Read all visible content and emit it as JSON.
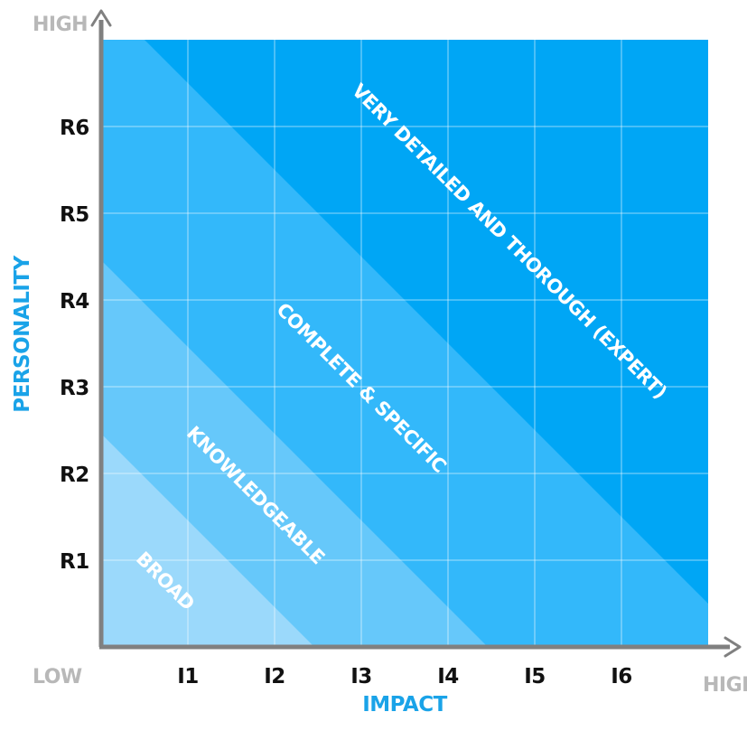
{
  "corner_labels": {
    "y_high": "HIGH",
    "x_high": "HIGH",
    "low": "LOW"
  },
  "axis_titles": {
    "y": "PERSONALITY",
    "x": "IMPACT"
  },
  "y_ticks": [
    "R1",
    "R2",
    "R3",
    "R4",
    "R5",
    "R6"
  ],
  "x_ticks": [
    "I1",
    "I2",
    "I3",
    "I4",
    "I5",
    "I6"
  ],
  "bands": [
    {
      "label": "BROAD",
      "color": "#9bd9fb"
    },
    {
      "label": "KNOWLEDGEABLE",
      "color": "#66c8fa"
    },
    {
      "label": "COMPLETE & SPECIFIC",
      "color": "#33b8fa"
    },
    {
      "label": "VERY DETAILED AND THOROUGH (EXPERT)",
      "color": "#00a6f5"
    }
  ],
  "colors": {
    "axis": "#808080",
    "grid": "#ffffff",
    "title_accent": "#1aa3e8"
  }
}
